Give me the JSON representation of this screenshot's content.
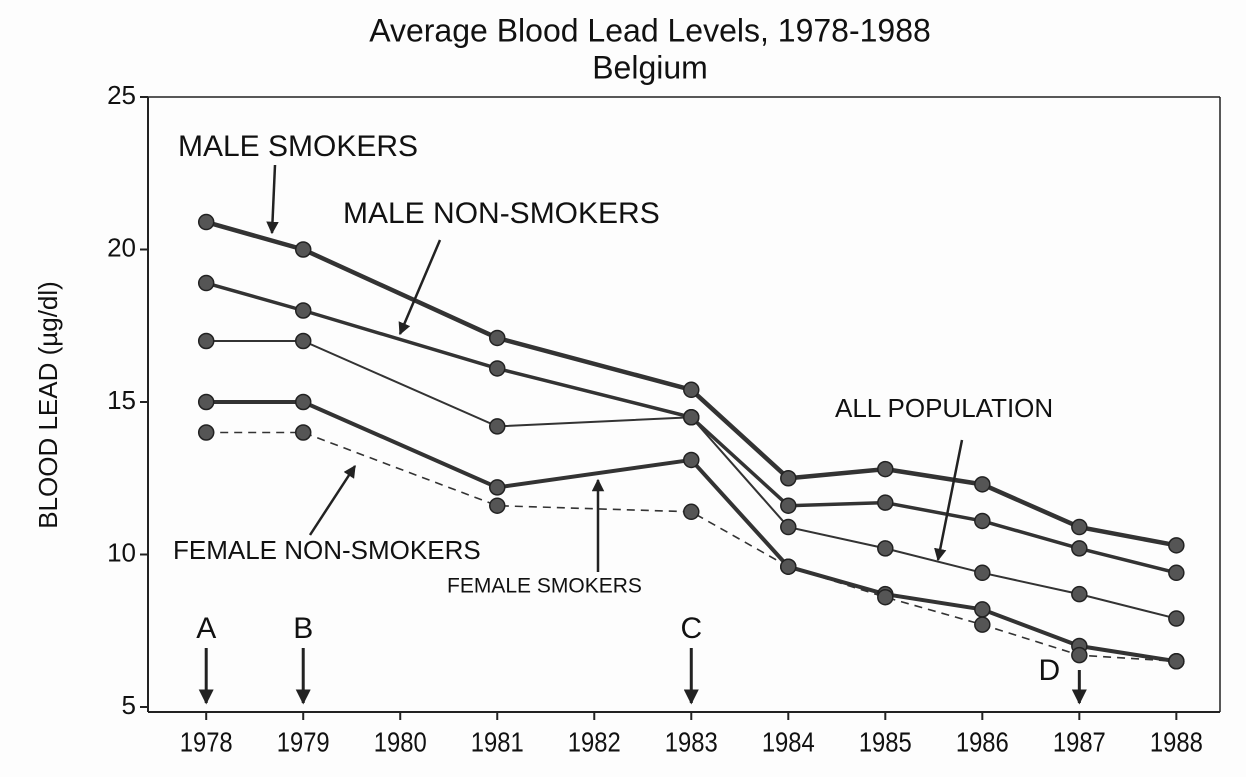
{
  "chart_data": {
    "type": "line",
    "title": "Average Blood Lead Levels, 1978-1988",
    "subtitle": "Belgium",
    "y_label": "BLOOD LEAD (µg/dl)",
    "x": [
      1978,
      1979,
      1981,
      1983,
      1984,
      1985,
      1986,
      1987,
      1988
    ],
    "series": [
      {
        "name": "MALE SMOKERS",
        "color": "#333333",
        "values": [
          20.9,
          20.0,
          17.1,
          15.4,
          12.5,
          12.8,
          12.3,
          10.9,
          10.3
        ]
      },
      {
        "name": "MALE NON-SMOKERS",
        "color": "#333333",
        "values": [
          18.9,
          18.0,
          16.1,
          14.5,
          11.6,
          11.7,
          11.1,
          10.2,
          9.4
        ]
      },
      {
        "name": "ALL POPULATION",
        "color": "#333333",
        "values": [
          17.0,
          17.0,
          14.2,
          14.5,
          10.9,
          10.2,
          9.4,
          8.7,
          7.9
        ]
      },
      {
        "name": "FEMALE SMOKERS",
        "color": "#333333",
        "values": [
          15.0,
          15.0,
          12.2,
          13.1,
          9.6,
          8.7,
          8.2,
          7.0,
          6.5
        ]
      },
      {
        "name": "FEMALE NON-SMOKERS",
        "color": "#333333",
        "dashed": true,
        "values": [
          14.0,
          14.0,
          11.6,
          11.4,
          9.6,
          8.6,
          7.7,
          6.7,
          6.5
        ]
      }
    ],
    "markers": [
      {
        "label": "A",
        "x": 1978
      },
      {
        "label": "B",
        "x": 1979
      },
      {
        "label": "C",
        "x": 1983
      },
      {
        "label": "D",
        "x": 1987
      }
    ],
    "xlim": [
      1977.4,
      1988.45
    ],
    "xticks": [
      1978,
      1979,
      1980,
      1981,
      1982,
      1983,
      1984,
      1985,
      1986,
      1987,
      1988
    ],
    "ylim": [
      5,
      25
    ],
    "yticks": [
      5,
      10,
      15,
      20,
      25
    ],
    "grid": false
  }
}
